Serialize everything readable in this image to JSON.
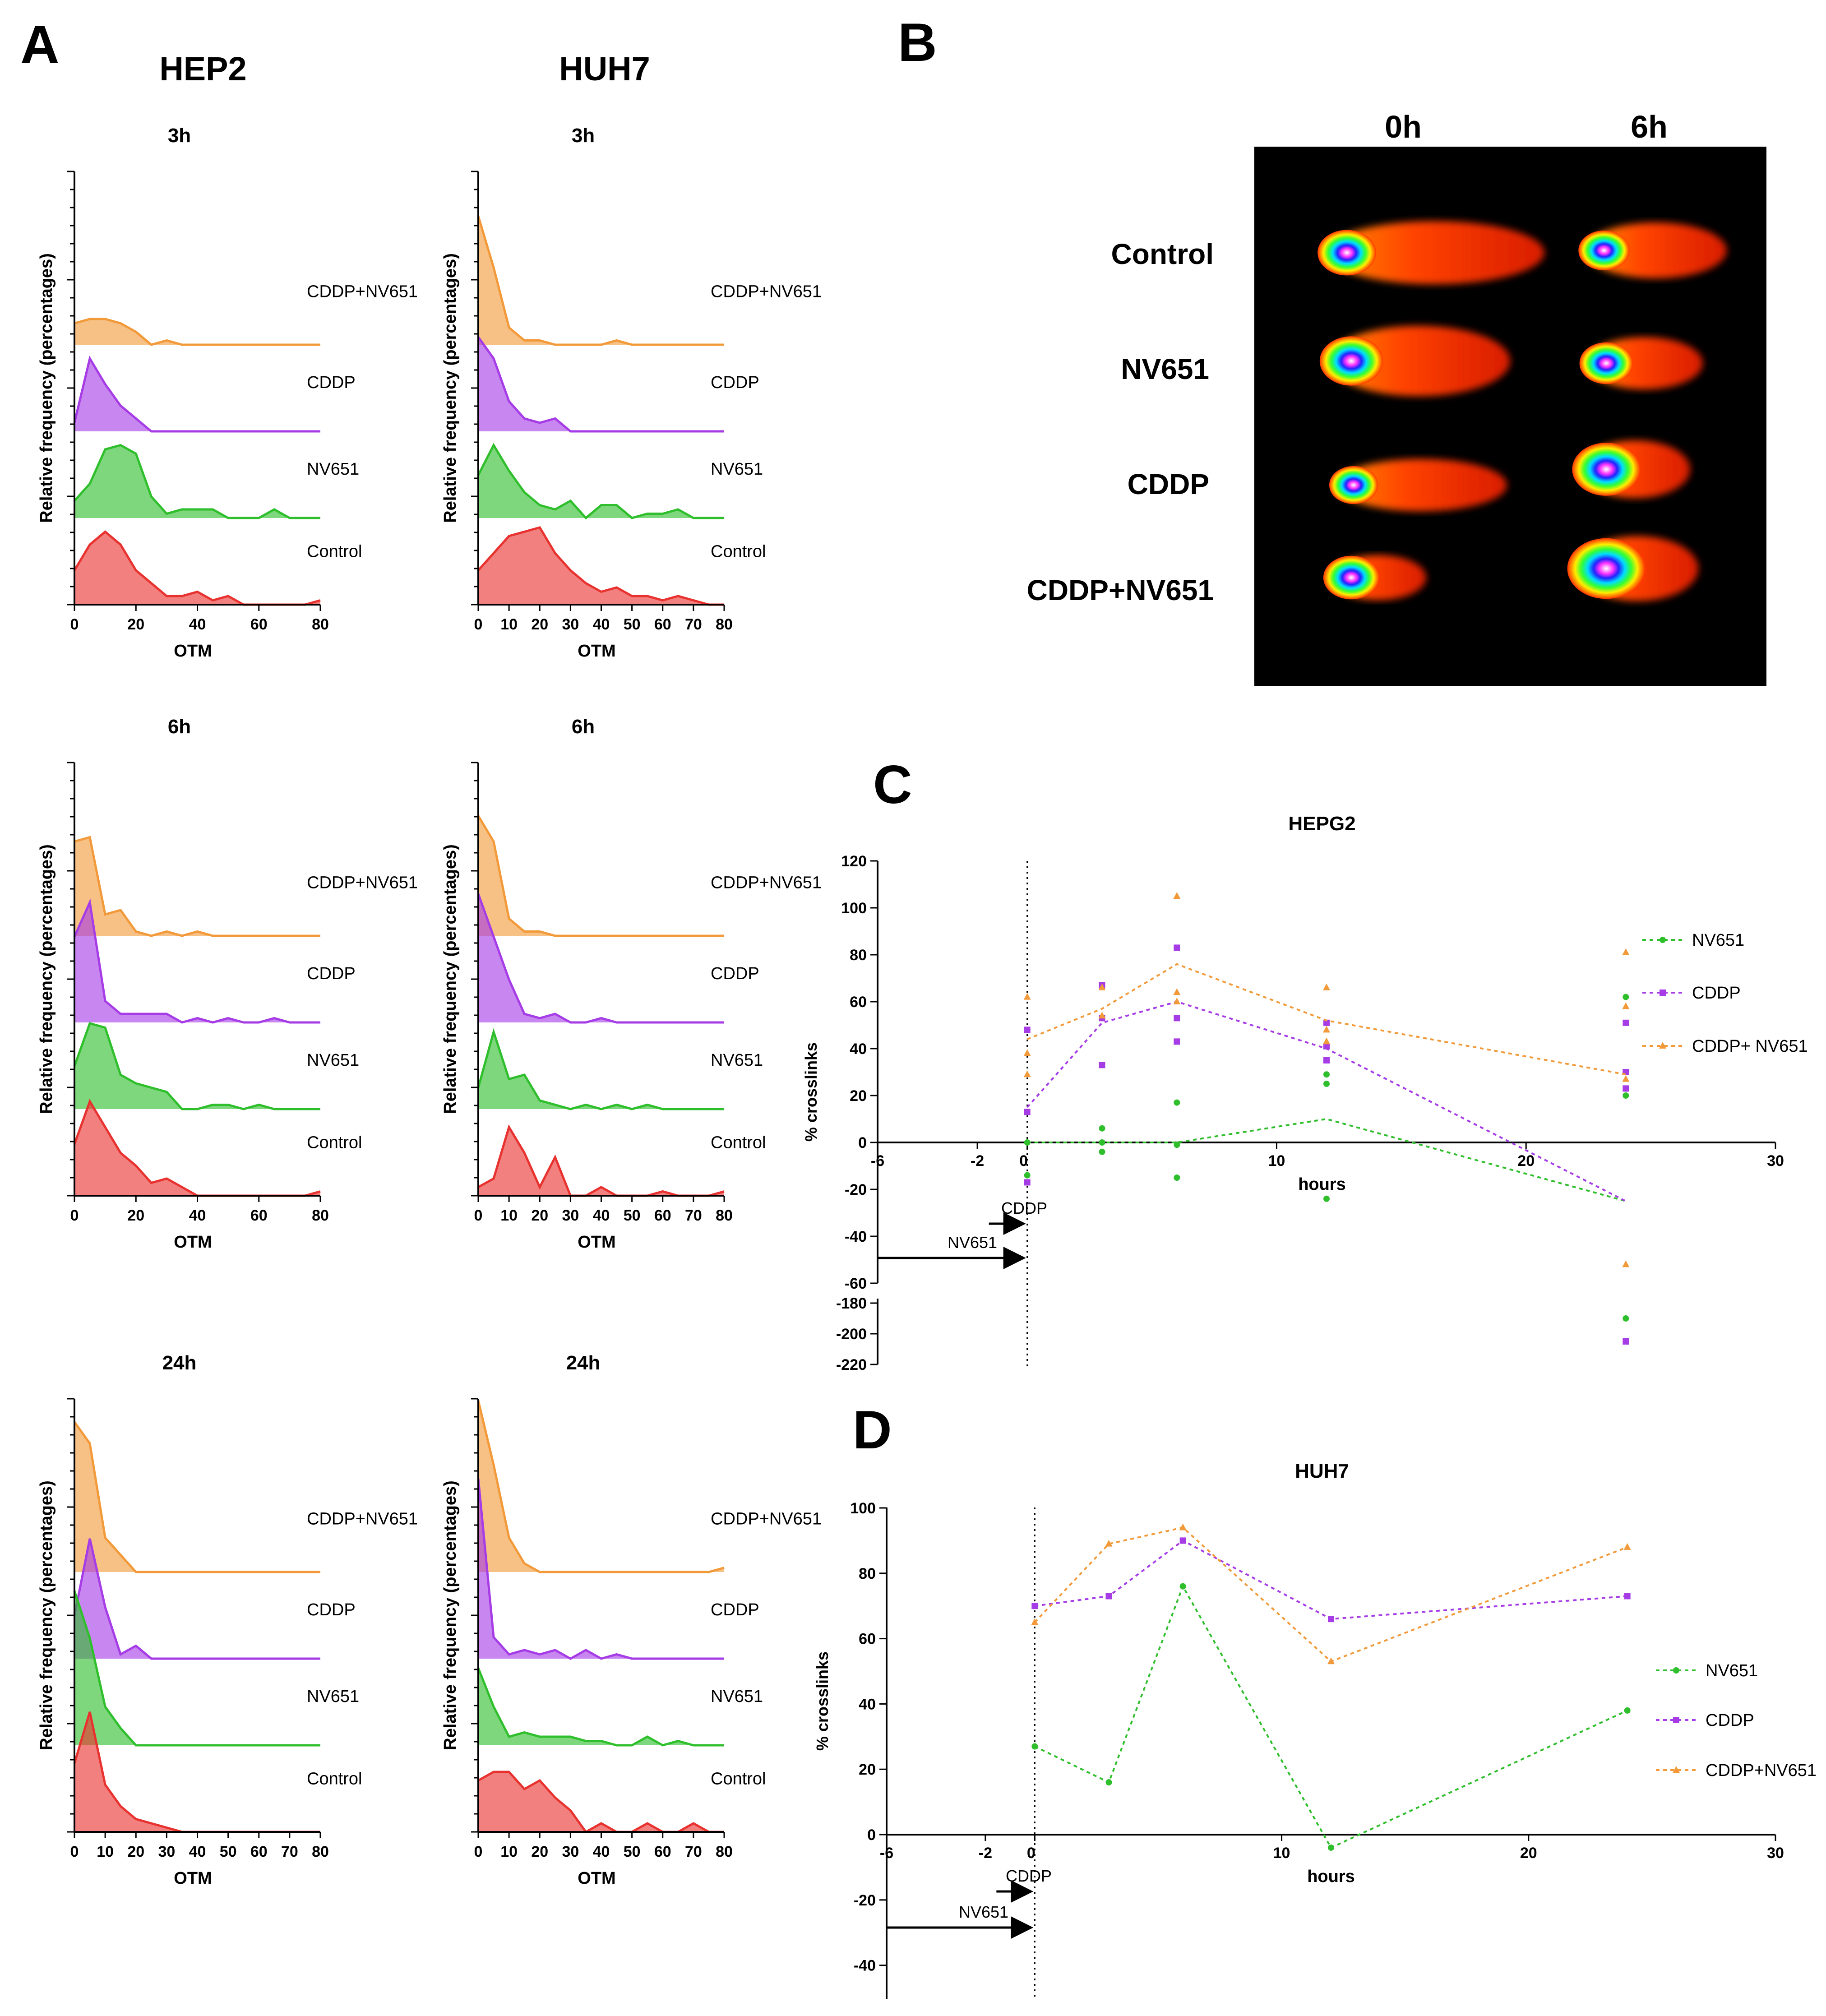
{
  "panel_labels": {
    "A": "A",
    "B": "B",
    "C": "C",
    "D": "D"
  },
  "colors": {
    "control": "#e8322f",
    "nv651": "#2fbf2c",
    "cddp": "#a63ce6",
    "cddp_nv651": "#f29a3a"
  },
  "panel_a": {
    "columns": [
      "HEP2",
      "HUH7"
    ],
    "time_titles": [
      "3h",
      "6h",
      "24h"
    ],
    "ylabel": "Relative frequency (percentages)",
    "xlabel": "OTM",
    "series_names": [
      "CDDP+NV651",
      "CDDP",
      "NV651",
      "Control"
    ],
    "xticks_short": [
      "0",
      "20",
      "40",
      "60",
      "80"
    ],
    "xticks_long": [
      "0",
      "10",
      "20",
      "30",
      "40",
      "50",
      "60",
      "70",
      "80"
    ]
  },
  "panel_b": {
    "col_labels": [
      "0h",
      "6h"
    ],
    "row_labels": [
      "Control",
      "NV651",
      "CDDP",
      "CDDP+NV651"
    ]
  },
  "chart_data": [
    {
      "type": "area",
      "panel": "A",
      "column": "HEP2",
      "time": "3h",
      "x": [
        0,
        5,
        10,
        15,
        20,
        25,
        30,
        35,
        40,
        45,
        50,
        55,
        60,
        65,
        70,
        75,
        80
      ],
      "xlim": [
        0,
        80
      ],
      "series": [
        {
          "name": "Control",
          "values": [
            8,
            14,
            17,
            14,
            8,
            5,
            2,
            2,
            3,
            1,
            2,
            0,
            0,
            0,
            0,
            0,
            1
          ]
        },
        {
          "name": "NV651",
          "values": [
            4,
            8,
            16,
            17,
            15,
            5,
            1,
            2,
            2,
            2,
            0,
            0,
            0,
            2,
            0,
            0,
            0
          ]
        },
        {
          "name": "CDDP",
          "values": [
            2,
            17,
            11,
            6,
            3,
            0,
            0,
            0,
            0,
            0,
            0,
            0,
            0,
            0,
            0,
            0,
            0
          ]
        },
        {
          "name": "CDDP+NV651",
          "values": [
            5,
            6,
            6,
            5,
            3,
            0,
            1,
            0,
            0,
            0,
            0,
            0,
            0,
            0,
            0,
            0,
            0
          ]
        }
      ]
    },
    {
      "type": "area",
      "panel": "A",
      "column": "HUH7",
      "time": "3h",
      "x": [
        0,
        5,
        10,
        15,
        20,
        25,
        30,
        35,
        40,
        45,
        50,
        55,
        60,
        65,
        70,
        75,
        80
      ],
      "xlim": [
        0,
        80
      ],
      "series": [
        {
          "name": "Control",
          "values": [
            8,
            12,
            16,
            17,
            18,
            12,
            8,
            5,
            3,
            4,
            2,
            2,
            1,
            2,
            1,
            0,
            0
          ]
        },
        {
          "name": "NV651",
          "values": [
            10,
            17,
            11,
            6,
            3,
            2,
            4,
            0,
            3,
            3,
            0,
            1,
            1,
            2,
            0,
            0,
            0
          ]
        },
        {
          "name": "CDDP",
          "values": [
            22,
            17,
            7,
            3,
            2,
            3,
            0,
            0,
            0,
            0,
            0,
            0,
            0,
            0,
            0,
            0,
            0
          ]
        },
        {
          "name": "CDDP+NV651",
          "values": [
            30,
            18,
            4,
            1,
            1,
            0,
            0,
            0,
            0,
            1,
            0,
            0,
            0,
            0,
            0,
            0,
            0
          ]
        }
      ]
    },
    {
      "type": "area",
      "panel": "A",
      "column": "HEP2",
      "time": "6h",
      "x": [
        0,
        5,
        10,
        15,
        20,
        25,
        30,
        35,
        40,
        45,
        50,
        55,
        60,
        65,
        70,
        75,
        80
      ],
      "xlim": [
        0,
        80
      ],
      "series": [
        {
          "name": "Control",
          "values": [
            12,
            22,
            16,
            10,
            7,
            3,
            4,
            2,
            0,
            0,
            0,
            0,
            0,
            0,
            0,
            0,
            1
          ]
        },
        {
          "name": "NV651",
          "values": [
            10,
            20,
            19,
            8,
            6,
            5,
            4,
            0,
            0,
            1,
            1,
            0,
            1,
            0,
            0,
            0,
            0
          ]
        },
        {
          "name": "CDDP",
          "values": [
            20,
            28,
            5,
            2,
            2,
            2,
            2,
            0,
            1,
            0,
            1,
            0,
            0,
            1,
            0,
            0,
            0
          ]
        },
        {
          "name": "CDDP+NV651",
          "values": [
            22,
            23,
            5,
            6,
            1,
            0,
            1,
            0,
            1,
            0,
            0,
            0,
            0,
            0,
            0,
            0,
            0
          ]
        }
      ]
    },
    {
      "type": "area",
      "panel": "A",
      "column": "HUH7",
      "time": "6h",
      "x": [
        0,
        5,
        10,
        15,
        20,
        25,
        30,
        35,
        40,
        45,
        50,
        55,
        60,
        65,
        70,
        75,
        80
      ],
      "xlim": [
        0,
        80
      ],
      "series": [
        {
          "name": "Control",
          "values": [
            2,
            4,
            16,
            10,
            2,
            9,
            0,
            0,
            2,
            0,
            0,
            0,
            1,
            0,
            0,
            0,
            1
          ]
        },
        {
          "name": "NV651",
          "values": [
            5,
            18,
            7,
            8,
            2,
            1,
            0,
            1,
            0,
            1,
            0,
            1,
            0,
            0,
            0,
            0,
            0
          ]
        },
        {
          "name": "CDDP",
          "values": [
            30,
            20,
            10,
            2,
            1,
            2,
            0,
            0,
            1,
            0,
            0,
            0,
            0,
            0,
            0,
            0,
            0
          ]
        },
        {
          "name": "CDDP+NV651",
          "values": [
            28,
            22,
            4,
            1,
            1,
            0,
            0,
            0,
            0,
            0,
            0,
            0,
            0,
            0,
            0,
            0,
            0
          ]
        }
      ]
    },
    {
      "type": "area",
      "panel": "A",
      "column": "HEP2",
      "time": "24h",
      "x": [
        0,
        5,
        10,
        15,
        20,
        25,
        30,
        35,
        40,
        45,
        50,
        55,
        60,
        65,
        70,
        75,
        80
      ],
      "xlim": [
        0,
        80
      ],
      "series": [
        {
          "name": "Control",
          "values": [
            16,
            28,
            11,
            6,
            3,
            2,
            1,
            0,
            0,
            0,
            0,
            0,
            0,
            0,
            0,
            0,
            0
          ]
        },
        {
          "name": "NV651",
          "values": [
            36,
            25,
            9,
            4,
            0,
            0,
            0,
            0,
            0,
            0,
            0,
            0,
            0,
            0,
            0,
            0,
            0
          ]
        },
        {
          "name": "CDDP",
          "values": [
            10,
            28,
            12,
            1,
            3,
            0,
            0,
            0,
            0,
            0,
            0,
            0,
            0,
            0,
            0,
            0,
            0
          ]
        },
        {
          "name": "CDDP+NV651",
          "values": [
            35,
            30,
            8,
            4,
            0,
            0,
            0,
            0,
            0,
            0,
            0,
            0,
            0,
            0,
            0,
            0,
            0
          ]
        }
      ]
    },
    {
      "type": "area",
      "panel": "A",
      "column": "HUH7",
      "time": "24h",
      "x": [
        0,
        5,
        10,
        15,
        20,
        25,
        30,
        35,
        40,
        45,
        50,
        55,
        60,
        65,
        70,
        75,
        80
      ],
      "xlim": [
        0,
        80
      ],
      "series": [
        {
          "name": "Control",
          "values": [
            12,
            14,
            14,
            10,
            12,
            8,
            5,
            0,
            2,
            0,
            0,
            2,
            0,
            0,
            2,
            0,
            0
          ]
        },
        {
          "name": "NV651",
          "values": [
            18,
            9,
            2,
            3,
            2,
            2,
            2,
            1,
            1,
            0,
            0,
            2,
            0,
            1,
            0,
            0,
            0
          ]
        },
        {
          "name": "CDDP",
          "values": [
            42,
            5,
            1,
            2,
            1,
            2,
            0,
            2,
            0,
            1,
            0,
            0,
            0,
            0,
            0,
            0,
            0
          ]
        },
        {
          "name": "CDDP+NV651",
          "values": [
            40,
            25,
            8,
            2,
            0,
            0,
            0,
            0,
            0,
            0,
            0,
            0,
            0,
            0,
            0,
            0,
            1
          ]
        }
      ]
    },
    {
      "type": "scatter",
      "panel": "C",
      "title": "HEPG2",
      "xlabel": "hours",
      "ylabel": "% crosslinks",
      "xlim": [
        -6,
        30
      ],
      "ylim_upper": [
        -60,
        120
      ],
      "ylim_lower": [
        -220,
        -180
      ],
      "xticks": [
        "-6",
        "-2",
        "0",
        "10",
        "20",
        "30"
      ],
      "yticks_upper": [
        "120",
        "100",
        "80",
        "60",
        "40",
        "20",
        "0",
        "-20",
        "-40",
        "-60"
      ],
      "yticks_lower": [
        "-180",
        "-200",
        "-220"
      ],
      "treatment_arrows": [
        {
          "label": "CDDP",
          "from": 0,
          "to": 0
        },
        {
          "label": "NV651",
          "from": -6,
          "to": 0
        }
      ],
      "series": [
        {
          "name": "NV651",
          "points": [
            [
              0,
              0
            ],
            [
              0,
              -14
            ],
            [
              0,
              -17
            ],
            [
              3,
              6
            ],
            [
              3,
              0
            ],
            [
              3,
              -4
            ],
            [
              6,
              17
            ],
            [
              6,
              -1
            ],
            [
              6,
              -15
            ],
            [
              12,
              25
            ],
            [
              12,
              29
            ],
            [
              12,
              -24
            ],
            [
              24,
              62
            ],
            [
              24,
              20
            ],
            [
              24,
              -190
            ]
          ],
          "mean": [
            [
              0,
              0
            ],
            [
              3,
              0
            ],
            [
              6,
              0
            ],
            [
              12,
              10
            ],
            [
              24,
              -25
            ]
          ]
        },
        {
          "name": "CDDP",
          "points": [
            [
              0,
              48
            ],
            [
              0,
              13
            ],
            [
              0,
              -17
            ],
            [
              3,
              67
            ],
            [
              3,
              53
            ],
            [
              3,
              33
            ],
            [
              6,
              83
            ],
            [
              6,
              53
            ],
            [
              6,
              43
            ],
            [
              12,
              51
            ],
            [
              12,
              35
            ],
            [
              12,
              41
            ],
            [
              24,
              51
            ],
            [
              24,
              30
            ],
            [
              24,
              23
            ],
            [
              24,
              -205
            ]
          ],
          "mean": [
            [
              0,
              15
            ],
            [
              3,
              51
            ],
            [
              6,
              60
            ],
            [
              12,
              40
            ],
            [
              24,
              -25
            ]
          ]
        },
        {
          "name": "CDDP+ NV651",
          "points": [
            [
              0,
              62
            ],
            [
              0,
              38
            ],
            [
              0,
              29
            ],
            [
              3,
              66
            ],
            [
              3,
              54
            ],
            [
              6,
              105
            ],
            [
              6,
              64
            ],
            [
              6,
              60
            ],
            [
              12,
              66
            ],
            [
              12,
              48
            ],
            [
              12,
              43
            ],
            [
              24,
              81
            ],
            [
              24,
              58
            ],
            [
              24,
              27
            ],
            [
              24,
              -52
            ]
          ],
          "mean": [
            [
              0,
              44
            ],
            [
              3,
              57
            ],
            [
              6,
              76
            ],
            [
              12,
              52
            ],
            [
              24,
              29
            ]
          ]
        }
      ]
    },
    {
      "type": "line",
      "panel": "D",
      "title": "HUH7",
      "xlabel": "hours",
      "ylabel": "% crosslinks",
      "xlim": [
        -6,
        30
      ],
      "ylim": [
        -50,
        100
      ],
      "xticks": [
        "-6",
        "-2",
        "0",
        "10",
        "20",
        "30"
      ],
      "yticks": [
        "100",
        "80",
        "60",
        "40",
        "20",
        "0",
        "-20",
        "-40"
      ],
      "treatment_arrows": [
        {
          "label": "CDDP",
          "from": 0,
          "to": 0
        },
        {
          "label": "NV651",
          "from": -6,
          "to": 0
        }
      ],
      "x": [
        0,
        3,
        6,
        12,
        24
      ],
      "series": [
        {
          "name": "NV651",
          "values": [
            27,
            16,
            76,
            -4,
            38
          ]
        },
        {
          "name": "CDDP",
          "values": [
            70,
            73,
            90,
            66,
            73
          ]
        },
        {
          "name": "CDDP+NV651",
          "values": [
            65,
            89,
            94,
            53,
            88
          ]
        }
      ]
    }
  ]
}
